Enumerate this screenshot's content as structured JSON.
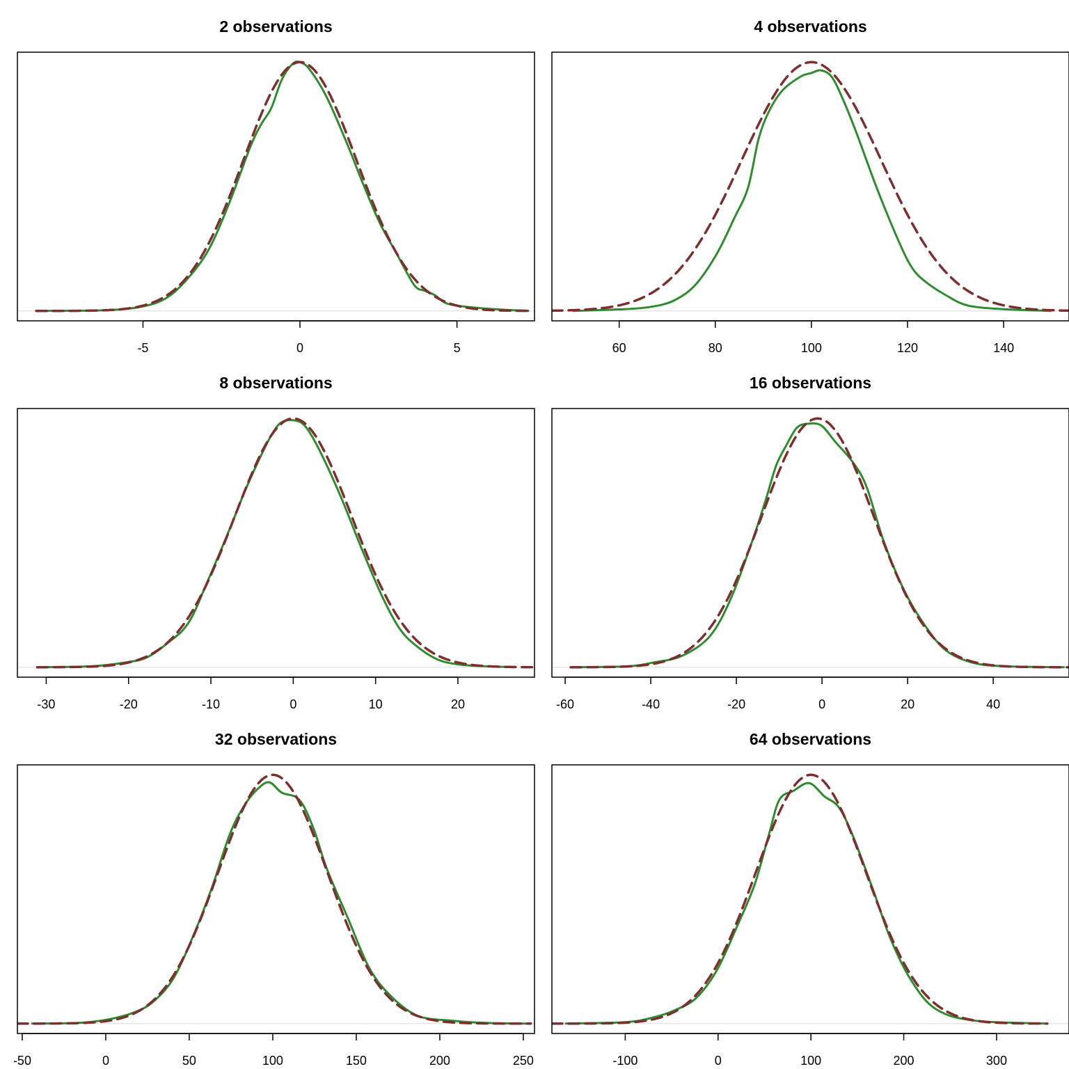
{
  "colors": {
    "empirical": "#2e8b2e",
    "normal": "#7d2f2f",
    "baseline": "#e6e6e6",
    "frame": "#000000"
  },
  "chart_data": [
    {
      "type": "line",
      "title": "2 observations",
      "xlim": [
        -9.0,
        7.47
      ],
      "ticks": [
        -5,
        0,
        5
      ],
      "grid": false,
      "normal": {
        "mean": 0,
        "sd": 1.8,
        "xrange": [
          -8.4,
          7.3
        ]
      },
      "empirical": {
        "x": [
          -8.4,
          -6.2,
          -5,
          -4.23,
          -3.57,
          -2.9,
          -2.24,
          -1.57,
          -1.24,
          -0.91,
          -0.58,
          -0.24,
          0,
          0.31,
          0.86,
          1.53,
          1.97,
          2.53,
          3.08,
          3.64,
          3.97,
          4.3,
          4.75,
          5.96,
          7.3
        ],
        "y": [
          0,
          0.0006,
          0.004,
          0.012,
          0.029,
          0.055,
          0.097,
          0.147,
          0.166,
          0.181,
          0.206,
          0.22,
          0.2216,
          0.215,
          0.19,
          0.147,
          0.116,
          0.079,
          0.051,
          0.023,
          0.018,
          0.014,
          0.006,
          0.002,
          0
        ]
      }
    },
    {
      "type": "line",
      "title": "4 observations",
      "xlim": [
        46,
        153.6
      ],
      "ticks": [
        60,
        80,
        100,
        120,
        140
      ],
      "grid": false,
      "normal": {
        "mean": 100,
        "sd": 14.5,
        "xrange": [
          46,
          153.6
        ]
      },
      "empirical": {
        "x": [
          50.3,
          61.4,
          67.2,
          71.6,
          75.9,
          80.3,
          83.9,
          86.8,
          89,
          91.2,
          94,
          97.7,
          99.9,
          102,
          104.2,
          106.4,
          109.3,
          113.6,
          118,
          120.9,
          123.8,
          128.1,
          132.5,
          139.7,
          149.9
        ],
        "y": [
          0,
          0.0002,
          0.0005,
          0.0012,
          0.0029,
          0.0063,
          0.0102,
          0.0136,
          0.019,
          0.0221,
          0.0244,
          0.0259,
          0.0263,
          0.0266,
          0.0259,
          0.0236,
          0.0198,
          0.0136,
          0.0079,
          0.0048,
          0.0032,
          0.0017,
          0.0006,
          0.0002,
          0
        ]
      }
    },
    {
      "type": "line",
      "title": "8 observations",
      "xlim": [
        -33.5,
        29.3
      ],
      "ticks": [
        -30,
        -20,
        -10,
        0,
        10,
        20
      ],
      "grid": false,
      "normal": {
        "mean": 0,
        "sd": 7.1,
        "xrange": [
          -31.1,
          29.0
        ]
      },
      "empirical": {
        "x": [
          -31.1,
          -24.6,
          -20.3,
          -17.8,
          -15.3,
          -12.7,
          -10.2,
          -7.7,
          -6,
          -4.3,
          -2.6,
          -1.35,
          0.34,
          1.6,
          3.3,
          5.8,
          8.35,
          10.9,
          13,
          15.1,
          17.6,
          20.2,
          23.5,
          26.9
        ],
        "y": [
          0,
          0.0002,
          0.0011,
          0.0022,
          0.0054,
          0.0101,
          0.0203,
          0.0313,
          0.0392,
          0.0463,
          0.0526,
          0.0554,
          0.0557,
          0.0541,
          0.0486,
          0.0384,
          0.0266,
          0.0156,
          0.0085,
          0.0046,
          0.0017,
          0.0006,
          0.0002,
          0
        ]
      }
    },
    {
      "type": "line",
      "title": "16 observations",
      "xlim": [
        -63.1,
        57.7
      ],
      "ticks": [
        -60,
        -40,
        -20,
        0,
        20,
        40
      ],
      "grid": false,
      "normal": {
        "mean": -1,
        "sd": 13.1,
        "xrange": [
          -58.7,
          57.7
        ]
      },
      "empirical": {
        "x": [
          -58.7,
          -45.7,
          -39.2,
          -32.7,
          -26.2,
          -21.3,
          -16.4,
          -13.2,
          -10.7,
          -8.3,
          -5.9,
          -3.4,
          -0.2,
          3.1,
          7.2,
          10.4,
          14.5,
          19.3,
          24.2,
          29.1,
          35.6,
          43.7,
          56.7
        ],
        "y": [
          0,
          0.0001,
          0.0006,
          0.0014,
          0.0038,
          0.0084,
          0.0153,
          0.0204,
          0.0247,
          0.0272,
          0.0293,
          0.0298,
          0.0296,
          0.0276,
          0.0251,
          0.0221,
          0.0153,
          0.0093,
          0.005,
          0.002,
          0.0005,
          0.0001,
          0
        ]
      }
    },
    {
      "type": "line",
      "title": "32 observations",
      "xlim": [
        -52.9,
        256.7
      ],
      "ticks": [
        -50,
        0,
        50,
        100,
        150,
        200,
        250
      ],
      "grid": false,
      "normal": {
        "mean": 100,
        "sd": 32.8,
        "xrange": [
          -52.9,
          254.5
        ]
      },
      "empirical": {
        "x": [
          -44.6,
          -17.5,
          -0.8,
          15.8,
          28.3,
          40.8,
          53.3,
          63.7,
          74.2,
          82.5,
          90.8,
          97.9,
          105.4,
          115.8,
          124.2,
          132.5,
          145,
          157.5,
          170,
          186.7,
          207.5,
          228.3,
          253.3
        ],
        "y": [
          0,
          3e-05,
          0.00017,
          0.00051,
          0.00106,
          0.00225,
          0.00447,
          0.00668,
          0.00924,
          0.0106,
          0.01146,
          0.0118,
          0.01129,
          0.01095,
          0.00958,
          0.00754,
          0.00515,
          0.00276,
          0.0014,
          0.00038,
          0.00014,
          3e-05,
          0
        ]
      }
    },
    {
      "type": "line",
      "title": "64 observations",
      "xlim": [
        -179,
        378
      ],
      "ticks": [
        -100,
        0,
        100,
        200,
        300
      ],
      "grid": false,
      "normal": {
        "mean": 100,
        "sd": 59.5,
        "xrange": [
          -179,
          354.6
        ]
      },
      "empirical": {
        "x": [
          -164.9,
          -99,
          -69,
          -46.5,
          -24,
          -1.5,
          21,
          39.7,
          54.7,
          66,
          81,
          98.2,
          114.7,
          129.7,
          144.7,
          167.2,
          186,
          208.4,
          234.6,
          275.9,
          354.6
        ],
        "y": [
          0,
          4e-05,
          0.00017,
          0.00036,
          0.00068,
          0.00143,
          0.00265,
          0.00377,
          0.00509,
          0.00603,
          0.00627,
          0.00648,
          0.00612,
          0.00584,
          0.00509,
          0.00359,
          0.00227,
          0.00115,
          0.00039,
          8e-05,
          0
        ]
      }
    }
  ]
}
